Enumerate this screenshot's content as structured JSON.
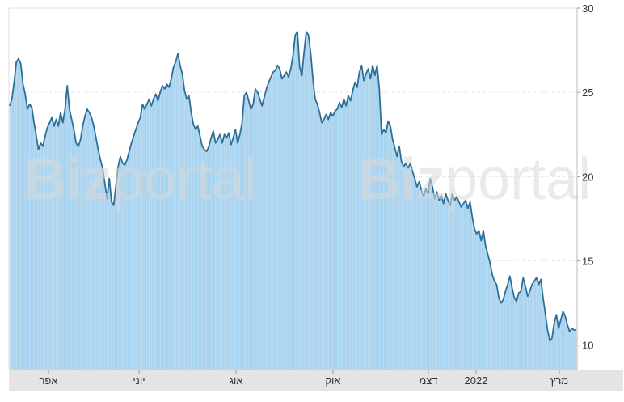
{
  "watermark": {
    "brand_bold": "Biz",
    "brand_light": "portal"
  },
  "colors": {
    "line": "#2e6f97",
    "area": "#a9d3ee",
    "grid": "#d8d8d8",
    "axis_band": "#e4e4e4"
  },
  "chart_data": {
    "type": "area",
    "ylim": [
      8.5,
      30
    ],
    "yticks": [
      10,
      15,
      20,
      25,
      30
    ],
    "grid": true,
    "x_tick_labels": [
      "אפר",
      "יוני",
      "אוג",
      "אוק",
      "דצמ",
      "2022",
      "מרץ"
    ],
    "series": [
      {
        "values": [
          24.2,
          24.6,
          25.6,
          26.8,
          27.0,
          26.7,
          25.5,
          24.9,
          24.0,
          24.3,
          24.1,
          23.2,
          22.4,
          21.6,
          22.0,
          21.8,
          22.4,
          22.9,
          23.2,
          23.5,
          23.0,
          23.4,
          23.0,
          23.8,
          23.2,
          24.0,
          25.4,
          24.0,
          23.4,
          22.8,
          22.0,
          21.8,
          22.2,
          23.0,
          23.6,
          24.0,
          23.8,
          23.5,
          23.0,
          22.3,
          21.6,
          21.0,
          20.5,
          19.6,
          18.7,
          19.9,
          18.5,
          18.3,
          19.5,
          20.6,
          21.2,
          20.8,
          20.7,
          21.0,
          21.5,
          22.0,
          22.4,
          22.8,
          23.2,
          23.5,
          24.3,
          24.0,
          24.3,
          24.6,
          24.2,
          24.6,
          24.9,
          24.5,
          25.0,
          25.4,
          25.2,
          25.5,
          25.3,
          25.8,
          26.5,
          26.8,
          27.3,
          26.6,
          26.1,
          25.1,
          24.6,
          24.8,
          23.8,
          23.1,
          22.8,
          23.0,
          22.4,
          21.8,
          21.6,
          21.5,
          21.8,
          22.3,
          22.7,
          22.0,
          22.2,
          22.5,
          22.0,
          22.5,
          22.3,
          22.6,
          21.9,
          22.3,
          22.8,
          22.0,
          22.5,
          23.2,
          24.8,
          25.0,
          24.5,
          24.0,
          24.3,
          25.2,
          25.0,
          24.6,
          24.2,
          24.7,
          25.2,
          25.6,
          25.9,
          26.2,
          26.3,
          26.6,
          26.4,
          25.8,
          26.0,
          26.2,
          25.9,
          26.4,
          27.2,
          28.4,
          28.6,
          26.5,
          26.0,
          27.4,
          28.6,
          28.4,
          27.3,
          25.8,
          24.6,
          24.3,
          23.8,
          23.2,
          23.4,
          23.7,
          23.4,
          23.8,
          23.6,
          23.9,
          24.0,
          24.4,
          24.1,
          24.6,
          24.2,
          24.8,
          24.5,
          25.1,
          25.6,
          25.3,
          26.2,
          26.6,
          25.7,
          26.1,
          26.4,
          25.8,
          26.6,
          26.0,
          26.6,
          25.2,
          22.5,
          22.8,
          22.6,
          23.3,
          23.0,
          22.2,
          21.7,
          21.2,
          21.8,
          20.9,
          20.6,
          20.8,
          20.5,
          20.8,
          20.3,
          19.9,
          19.4,
          19.7,
          19.2,
          18.8,
          19.3,
          19.0,
          19.9,
          19.4,
          18.7,
          19.1,
          18.6,
          18.9,
          18.4,
          19.0,
          18.6,
          18.3,
          19.0,
          18.6,
          18.8,
          18.5,
          18.2,
          18.4,
          18.6,
          18.1,
          18.5,
          17.6,
          16.9,
          16.6,
          16.8,
          16.2,
          16.8,
          15.9,
          15.4,
          14.9,
          14.2,
          13.8,
          13.6,
          12.8,
          12.5,
          12.7,
          13.2,
          13.6,
          14.1,
          13.4,
          12.8,
          12.6,
          13.1,
          13.2,
          14.0,
          13.5,
          12.9,
          13.2,
          13.6,
          13.8,
          14.0,
          13.6,
          13.9,
          12.8,
          11.9,
          10.9,
          10.3,
          10.4,
          11.3,
          11.8,
          11.0,
          11.5,
          12.0,
          11.7,
          11.2,
          10.8,
          11.0,
          10.9,
          10.9
        ]
      }
    ]
  }
}
